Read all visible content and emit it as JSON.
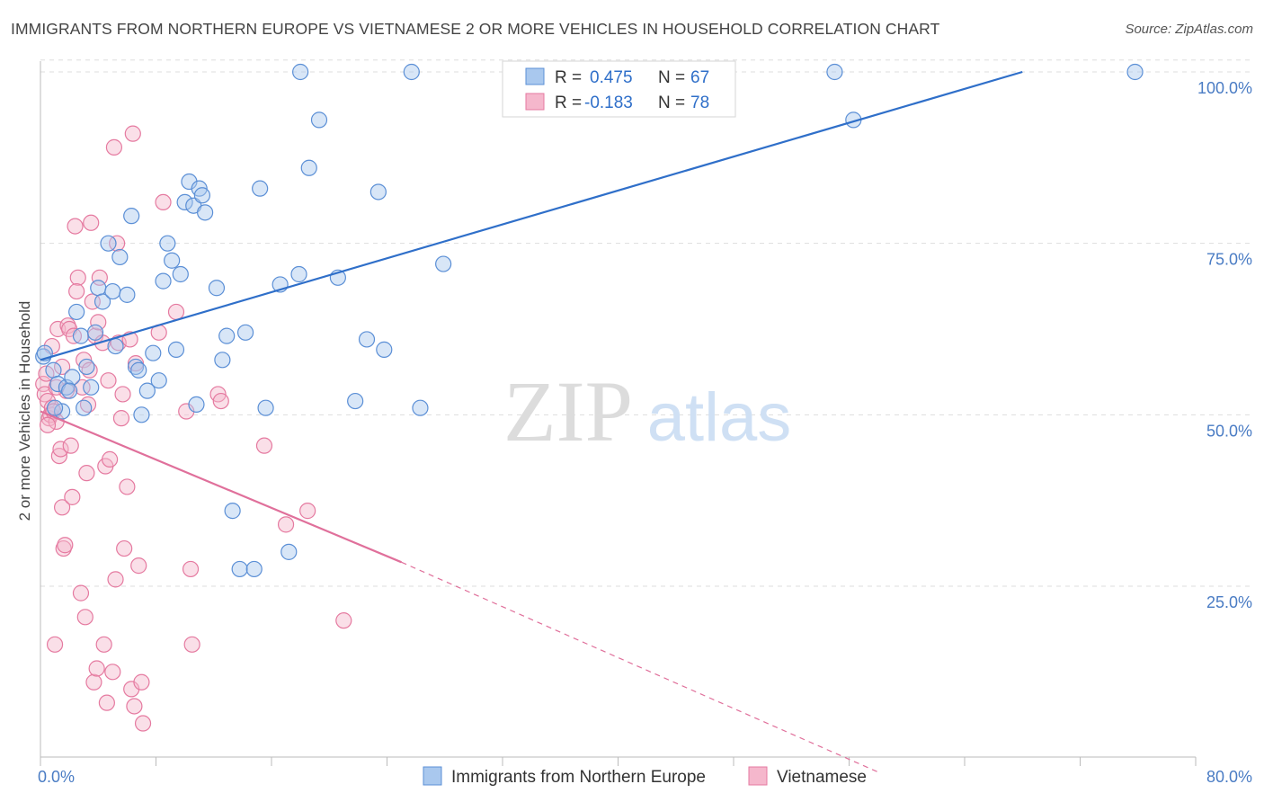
{
  "header": {
    "title": "IMMIGRANTS FROM NORTHERN EUROPE VS VIETNAMESE 2 OR MORE VEHICLES IN HOUSEHOLD CORRELATION CHART",
    "source": "Source: ZipAtlas.com"
  },
  "watermark": {
    "zip": "ZIP",
    "atlas": "atlas"
  },
  "colors": {
    "blue_fill": "#a9c8ee",
    "blue_stroke": "#5b8fd6",
    "blue_line": "#2f6fc9",
    "pink_fill": "#f5b7cc",
    "pink_stroke": "#e57aa0",
    "pink_line": "#e0709b",
    "axis_text": "#4a7cc4",
    "grid": "#dddddd"
  },
  "chart_data": {
    "type": "scatter",
    "title": "IMMIGRANTS FROM NORTHERN EUROPE VS VIETNAMESE 2 OR MORE VEHICLES IN HOUSEHOLD CORRELATION CHART",
    "xlabel": "",
    "ylabel": "2 or more Vehicles in Household",
    "xlim": [
      0,
      80
    ],
    "ylim": [
      0,
      102
    ],
    "x_tick_labels": [
      {
        "value": 0,
        "label": "0.0%"
      },
      {
        "value": 80,
        "label": "80.0%"
      }
    ],
    "y_tick_labels": [
      {
        "value": 25,
        "label": "25.0%"
      },
      {
        "value": 50,
        "label": "50.0%"
      },
      {
        "value": 75,
        "label": "75.0%"
      },
      {
        "value": 100,
        "label": "100.0%"
      }
    ],
    "grid": true,
    "legend": {
      "position": "top-center",
      "entries": [
        {
          "r_label": "R =",
          "r_value": "0.475",
          "n_label": "N =",
          "n_value": "67"
        },
        {
          "r_label": "R =",
          "r_value": "-0.183",
          "n_label": "N =",
          "n_value": "78"
        }
      ]
    },
    "bottom_legend": [
      "Immigrants from Northern Europe",
      "Vietnamese"
    ],
    "series": [
      {
        "name": "Immigrants from Northern Europe",
        "color": "#5b8fd6",
        "trend": {
          "x0": 0.0,
          "y0": 58.0,
          "x1": 68.0,
          "y1": 100.0,
          "dashed_to": null
        },
        "points": [
          [
            0.2,
            58.5
          ],
          [
            0.3,
            59.0
          ],
          [
            0.9,
            56.5
          ],
          [
            1.2,
            54.5
          ],
          [
            1.5,
            50.5
          ],
          [
            1.8,
            54.0
          ],
          [
            2.2,
            55.5
          ],
          [
            2.5,
            65.0
          ],
          [
            2.8,
            61.5
          ],
          [
            3.0,
            51.0
          ],
          [
            3.2,
            57.0
          ],
          [
            3.5,
            54.0
          ],
          [
            4.0,
            68.5
          ],
          [
            4.3,
            66.5
          ],
          [
            4.7,
            75.0
          ],
          [
            5.0,
            68.0
          ],
          [
            5.5,
            73.0
          ],
          [
            6.0,
            67.5
          ],
          [
            6.3,
            79.0
          ],
          [
            6.6,
            57.0
          ],
          [
            7.0,
            50.0
          ],
          [
            7.4,
            53.5
          ],
          [
            7.8,
            59.0
          ],
          [
            8.2,
            55.0
          ],
          [
            8.5,
            69.5
          ],
          [
            8.8,
            75.0
          ],
          [
            9.1,
            72.5
          ],
          [
            9.4,
            59.5
          ],
          [
            9.7,
            70.5
          ],
          [
            10.0,
            81.0
          ],
          [
            10.3,
            84.0
          ],
          [
            10.6,
            80.5
          ],
          [
            10.8,
            51.5
          ],
          [
            11.0,
            83.0
          ],
          [
            11.2,
            82.0
          ],
          [
            11.4,
            79.5
          ],
          [
            12.2,
            68.5
          ],
          [
            12.6,
            58.0
          ],
          [
            12.9,
            61.5
          ],
          [
            13.3,
            36.0
          ],
          [
            13.8,
            27.5
          ],
          [
            14.2,
            62.0
          ],
          [
            14.8,
            27.5
          ],
          [
            15.2,
            83.0
          ],
          [
            15.6,
            51.0
          ],
          [
            16.6,
            69.0
          ],
          [
            17.2,
            30.0
          ],
          [
            17.9,
            70.5
          ],
          [
            18.6,
            86.0
          ],
          [
            19.3,
            93.0
          ],
          [
            18.0,
            100.0
          ],
          [
            20.6,
            70.0
          ],
          [
            21.8,
            52.0
          ],
          [
            22.6,
            61.0
          ],
          [
            23.4,
            82.5
          ],
          [
            23.8,
            59.5
          ],
          [
            25.7,
            100.0
          ],
          [
            26.3,
            51.0
          ],
          [
            27.9,
            72.0
          ],
          [
            55.0,
            100.0
          ],
          [
            56.3,
            93.0
          ],
          [
            75.8,
            100.0
          ],
          [
            1.0,
            51.0
          ],
          [
            3.8,
            62.0
          ],
          [
            5.2,
            60.0
          ],
          [
            2.0,
            53.5
          ],
          [
            6.8,
            56.5
          ]
        ]
      },
      {
        "name": "Vietnamese",
        "color": "#e57aa0",
        "trend": {
          "x0": 0.0,
          "y0": 50.5,
          "x1": 25.0,
          "y1": 28.5,
          "dashed_to": [
            58.0,
            0.0
          ]
        },
        "points": [
          [
            0.2,
            54.5
          ],
          [
            0.3,
            53.0
          ],
          [
            0.5,
            52.0
          ],
          [
            0.6,
            49.5
          ],
          [
            0.7,
            50.0
          ],
          [
            0.8,
            51.0
          ],
          [
            0.9,
            50.5
          ],
          [
            1.0,
            16.5
          ],
          [
            1.1,
            49.0
          ],
          [
            1.2,
            62.5
          ],
          [
            1.3,
            44.0
          ],
          [
            1.4,
            45.0
          ],
          [
            1.5,
            36.5
          ],
          [
            1.6,
            30.5
          ],
          [
            1.7,
            31.0
          ],
          [
            1.8,
            53.5
          ],
          [
            1.9,
            63.0
          ],
          [
            2.0,
            62.5
          ],
          [
            2.1,
            45.5
          ],
          [
            2.2,
            38.0
          ],
          [
            2.3,
            61.5
          ],
          [
            2.4,
            77.5
          ],
          [
            2.6,
            70.0
          ],
          [
            2.8,
            24.0
          ],
          [
            3.0,
            58.0
          ],
          [
            3.1,
            20.5
          ],
          [
            3.2,
            41.5
          ],
          [
            3.3,
            51.5
          ],
          [
            3.5,
            78.0
          ],
          [
            3.6,
            66.5
          ],
          [
            3.7,
            11.0
          ],
          [
            3.8,
            61.5
          ],
          [
            3.9,
            13.0
          ],
          [
            4.1,
            70.0
          ],
          [
            4.3,
            60.5
          ],
          [
            4.4,
            16.5
          ],
          [
            4.5,
            42.5
          ],
          [
            4.6,
            8.0
          ],
          [
            4.7,
            55.0
          ],
          [
            4.8,
            43.5
          ],
          [
            5.0,
            12.5
          ],
          [
            5.1,
            89.0
          ],
          [
            5.2,
            26.0
          ],
          [
            5.3,
            75.0
          ],
          [
            5.4,
            60.5
          ],
          [
            5.6,
            49.5
          ],
          [
            5.8,
            30.5
          ],
          [
            6.0,
            39.5
          ],
          [
            6.2,
            61.0
          ],
          [
            6.3,
            10.0
          ],
          [
            6.4,
            91.0
          ],
          [
            6.5,
            7.5
          ],
          [
            6.6,
            57.5
          ],
          [
            6.8,
            28.0
          ],
          [
            7.0,
            11.0
          ],
          [
            7.1,
            5.0
          ],
          [
            8.2,
            62.0
          ],
          [
            8.5,
            81.0
          ],
          [
            9.4,
            65.0
          ],
          [
            10.1,
            50.5
          ],
          [
            10.4,
            27.5
          ],
          [
            10.5,
            16.5
          ],
          [
            12.3,
            53.0
          ],
          [
            12.5,
            52.0
          ],
          [
            15.5,
            45.5
          ],
          [
            17.0,
            34.0
          ],
          [
            18.5,
            36.0
          ],
          [
            21.0,
            20.0
          ],
          [
            0.4,
            56.0
          ],
          [
            1.1,
            54.0
          ],
          [
            2.5,
            68.0
          ],
          [
            3.4,
            56.5
          ],
          [
            0.5,
            48.5
          ],
          [
            2.9,
            54.0
          ],
          [
            4.0,
            63.5
          ],
          [
            1.5,
            57.0
          ],
          [
            0.8,
            60.0
          ],
          [
            5.7,
            53.0
          ]
        ]
      }
    ]
  }
}
